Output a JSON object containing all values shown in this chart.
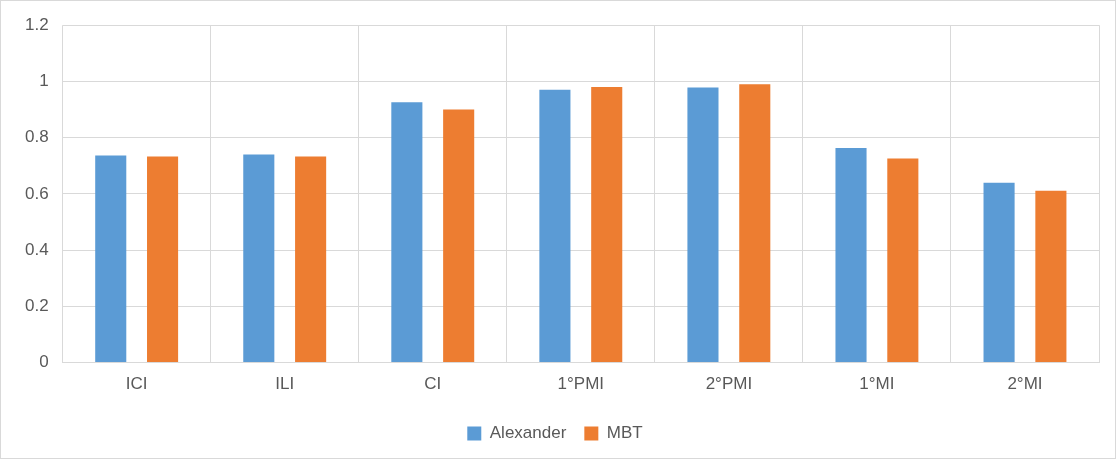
{
  "chart_data": {
    "type": "bar",
    "categories": [
      "ICI",
      "ILI",
      "CI",
      "1°PMI",
      "2°PMI",
      "1°MI",
      "2°MI"
    ],
    "series": [
      {
        "name": "Alexander",
        "color": "#5b9bd5",
        "values": [
          0.737,
          0.74,
          0.926,
          0.97,
          0.978,
          0.763,
          0.64
        ]
      },
      {
        "name": "MBT",
        "color": "#ed7d31",
        "values": [
          0.733,
          0.733,
          0.9,
          0.98,
          0.99,
          0.726,
          0.611
        ]
      }
    ],
    "ylim": [
      0,
      1.2
    ],
    "yticks": [
      0,
      0.2,
      0.4,
      0.6,
      0.8,
      1,
      1.2
    ],
    "grid": true,
    "legend": "bottom"
  }
}
